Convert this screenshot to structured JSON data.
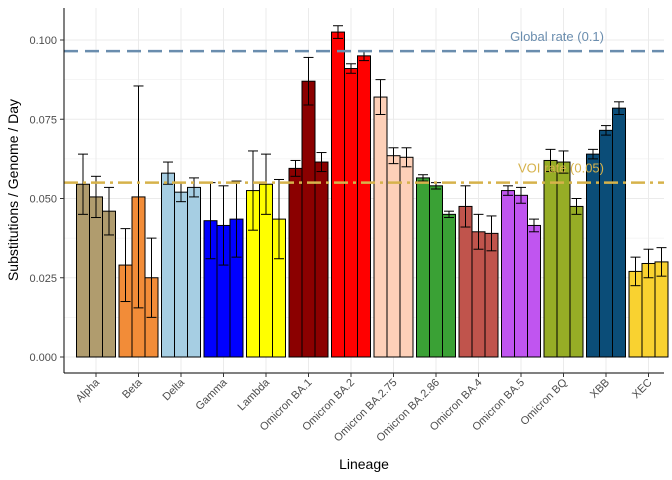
{
  "chart_data": {
    "type": "bar",
    "xlabel": "Lineage",
    "ylabel": "Substitutions / Genome / Day",
    "ylim": [
      0,
      0.11
    ],
    "yticks": [
      "0.000",
      "0.025",
      "0.050",
      "0.075",
      "0.100"
    ],
    "ytick_values": [
      0,
      0.025,
      0.05,
      0.075,
      0.1
    ],
    "grid": true,
    "groups": [
      {
        "name": "Alpha",
        "color": "#B09C6E",
        "values": [
          0.0545,
          0.0505,
          0.046
        ],
        "err": [
          0.0095,
          0.0065,
          0.0075
        ]
      },
      {
        "name": "Beta",
        "color": "#F28C38",
        "values": [
          0.029,
          0.0505,
          0.025
        ],
        "err": [
          0.0115,
          0.035,
          0.0125
        ]
      },
      {
        "name": "Delta",
        "color": "#A6CEE3",
        "values": [
          0.058,
          0.052,
          0.0535
        ],
        "err": [
          0.0035,
          0.003,
          0.003
        ]
      },
      {
        "name": "Gamma",
        "color": "#0000FF",
        "values": [
          0.043,
          0.0415,
          0.0435
        ],
        "err": [
          0.012,
          0.0125,
          0.012
        ]
      },
      {
        "name": "Lambda",
        "color": "#FFFF00",
        "values": [
          0.0525,
          0.0545,
          0.0435
        ],
        "err": [
          0.0125,
          0.0095,
          0.0125
        ]
      },
      {
        "name": "Omicron BA.1",
        "color": "#8B0000",
        "values": [
          0.0595,
          0.087,
          0.0615
        ],
        "err": [
          0.0025,
          0.0075,
          0.003
        ]
      },
      {
        "name": "Omicron BA.2",
        "color": "#FF0000",
        "values": [
          0.1025,
          0.091,
          0.095
        ],
        "err": [
          0.002,
          0.0015,
          0.0015
        ]
      },
      {
        "name": "Omicron BA.2.75",
        "color": "#FDD0B8",
        "values": [
          0.082,
          0.0635,
          0.063
        ],
        "err": [
          0.0055,
          0.0025,
          0.003
        ]
      },
      {
        "name": "Omicron BA.2.86",
        "color": "#3AA135",
        "values": [
          0.0565,
          0.054,
          0.045
        ],
        "err": [
          0.001,
          0.001,
          0.001
        ]
      },
      {
        "name": "Omicron BA.4",
        "color": "#C0544C",
        "values": [
          0.0475,
          0.0395,
          0.039
        ],
        "err": [
          0.0065,
          0.0055,
          0.0055
        ]
      },
      {
        "name": "Omicron BA.5",
        "color": "#C055F0",
        "values": [
          0.0525,
          0.051,
          0.0415
        ],
        "err": [
          0.0015,
          0.0025,
          0.002
        ]
      },
      {
        "name": "Omicron BQ",
        "color": "#96AD26",
        "values": [
          0.062,
          0.0615,
          0.0475
        ],
        "err": [
          0.0035,
          0.0035,
          0.0025
        ]
      },
      {
        "name": "XBB",
        "color": "#0B4D78",
        "values": [
          0.064,
          0.0715,
          0.0785
        ],
        "err": [
          0.0015,
          0.0015,
          0.002
        ]
      },
      {
        "name": "XEC",
        "color": "#F9D230",
        "values": [
          0.027,
          0.0295,
          0.03
        ],
        "err": [
          0.0045,
          0.0045,
          0.0045
        ]
      }
    ],
    "reference_lines": [
      {
        "label": "Global rate (0.1)",
        "value": 0.0965,
        "color": "#6A8DAE",
        "style": "dashed"
      },
      {
        "label": "VOI rate (0.05)",
        "value": 0.055,
        "color": "#D6B24B",
        "style": "dashdot"
      }
    ]
  }
}
